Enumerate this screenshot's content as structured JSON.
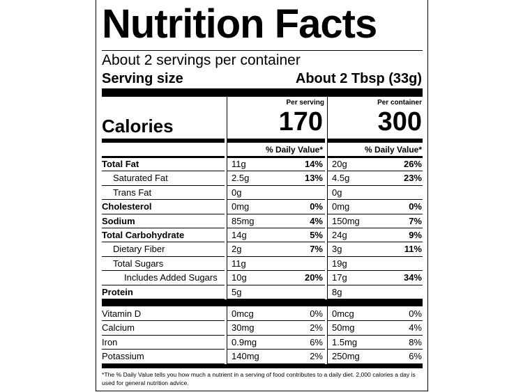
{
  "title": "Nutrition Facts",
  "servings_per_container": "About 2 servings per container",
  "serving_size_label": "Serving size",
  "serving_size_value": "About 2 Tbsp (33g)",
  "calories_label": "Calories",
  "per_serving_label": "Per serving",
  "per_container_label": "Per container",
  "calories_per_serving": "170",
  "calories_per_container": "300",
  "dv_header": "% Daily Value*",
  "nutrients": [
    {
      "name": "Total Fat",
      "bold": true,
      "indent": 0,
      "serving_amount": "11g",
      "serving_dv": "14%",
      "container_amount": "20g",
      "container_dv": "26%"
    },
    {
      "name": "Saturated Fat",
      "bold": false,
      "indent": 1,
      "serving_amount": "2.5g",
      "serving_dv": "13%",
      "container_amount": "4.5g",
      "container_dv": "23%"
    },
    {
      "name": "Trans Fat",
      "bold": false,
      "indent": 1,
      "serving_amount": "0g",
      "serving_dv": "",
      "container_amount": "0g",
      "container_dv": ""
    },
    {
      "name": "Cholesterol",
      "bold": true,
      "indent": 0,
      "serving_amount": "0mg",
      "serving_dv": "0%",
      "container_amount": "0mg",
      "container_dv": "0%"
    },
    {
      "name": "Sodium",
      "bold": true,
      "indent": 0,
      "serving_amount": "85mg",
      "serving_dv": "4%",
      "container_amount": "150mg",
      "container_dv": "7%"
    },
    {
      "name": "Total Carbohydrate",
      "bold": true,
      "indent": 0,
      "serving_amount": "14g",
      "serving_dv": "5%",
      "container_amount": "24g",
      "container_dv": "9%"
    },
    {
      "name": "Dietary Fiber",
      "bold": false,
      "indent": 1,
      "serving_amount": "2g",
      "serving_dv": "7%",
      "container_amount": "3g",
      "container_dv": "11%"
    },
    {
      "name": "Total Sugars",
      "bold": false,
      "indent": 1,
      "serving_amount": "11g",
      "serving_dv": "",
      "container_amount": "19g",
      "container_dv": ""
    },
    {
      "name": "Includes Added Sugars",
      "bold": false,
      "indent": 2,
      "serving_amount": "10g",
      "serving_dv": "20%",
      "container_amount": "17g",
      "container_dv": "34%"
    },
    {
      "name": "Protein",
      "bold": true,
      "indent": 0,
      "serving_amount": "5g",
      "serving_dv": "",
      "container_amount": "8g",
      "container_dv": ""
    }
  ],
  "micronutrients": [
    {
      "name": "Vitamin D",
      "serving_amount": "0mcg",
      "serving_dv": "0%",
      "container_amount": "0mcg",
      "container_dv": "0%"
    },
    {
      "name": "Calcium",
      "serving_amount": "30mg",
      "serving_dv": "2%",
      "container_amount": "50mg",
      "container_dv": "4%"
    },
    {
      "name": "Iron",
      "serving_amount": "0.9mg",
      "serving_dv": "6%",
      "container_amount": "1.5mg",
      "container_dv": "8%"
    },
    {
      "name": "Potassium",
      "serving_amount": "140mg",
      "serving_dv": "2%",
      "container_amount": "250mg",
      "container_dv": "6%"
    }
  ],
  "footnote": "*The % Daily Value tells you how much a nutrient in a serving of food contributes to a daily diet. 2,000 calories a day is used for general nutrition advice."
}
